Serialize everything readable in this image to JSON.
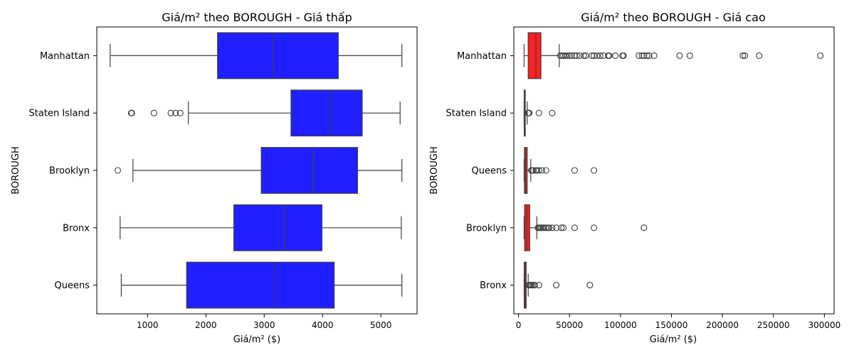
{
  "chart_data": [
    {
      "type": "boxplot",
      "title": "Giá/m² theo BOROUGH - Giá thấp",
      "xlabel": "Giá/m² ($)",
      "ylabel": "BOROUGH",
      "xlim": [
        130,
        5620
      ],
      "xticks": [
        1000,
        2000,
        3000,
        4000,
        5000
      ],
      "xtick_labels": [
        "1000",
        "2000",
        "3000",
        "4000",
        "5000"
      ],
      "box_color": "#0000ff",
      "categories": [
        "Manhattan",
        "Staten Island",
        "Brooklyn",
        "Bronx",
        "Queens"
      ],
      "boxes": [
        {
          "name": "Manhattan",
          "whislo": 360,
          "q1": 2200,
          "med": 3150,
          "q3": 4270,
          "whishi": 5360,
          "fliers": []
        },
        {
          "name": "Staten Island",
          "whislo": 1700,
          "q1": 3460,
          "med": 4140,
          "q3": 4680,
          "whishi": 5330,
          "fliers": [
            720,
            730,
            1110,
            1400,
            1480,
            1560
          ]
        },
        {
          "name": "Brooklyn",
          "whislo": 750,
          "q1": 2950,
          "med": 3840,
          "q3": 4600,
          "whishi": 5360,
          "fliers": [
            490
          ]
        },
        {
          "name": "Bronx",
          "whislo": 530,
          "q1": 2480,
          "med": 3350,
          "q3": 3990,
          "whishi": 5350,
          "fliers": []
        },
        {
          "name": "Queens",
          "whislo": 550,
          "q1": 1670,
          "med": 3180,
          "q3": 4200,
          "whishi": 5360,
          "fliers": []
        }
      ]
    },
    {
      "type": "boxplot",
      "title": "Giá/m² theo BOROUGH - Giá cao",
      "xlabel": "Giá/m² ($)",
      "ylabel": "BOROUGH",
      "xlim": [
        -4600,
        309500
      ],
      "xticks": [
        0,
        50000,
        100000,
        150000,
        200000,
        250000,
        300000
      ],
      "xtick_labels": [
        "0",
        "50000",
        "100000",
        "150000",
        "200000",
        "250000",
        "300000"
      ],
      "box_color": "#ff0000",
      "categories": [
        "Manhattan",
        "Staten Island",
        "Queens",
        "Brooklyn",
        "Bronx"
      ],
      "boxes": [
        {
          "name": "Manhattan",
          "whislo": 5500,
          "q1": 9500,
          "med": 17000,
          "q3": 22000,
          "whishi": 40000,
          "fliers": [
            41000,
            42500,
            44000,
            46000,
            48000,
            50000,
            52000,
            55000,
            57000,
            60000,
            64000,
            66000,
            72000,
            74000,
            77000,
            80000,
            83000,
            88000,
            89000,
            95000,
            102000,
            103000,
            118000,
            121000,
            123000,
            126000,
            128000,
            133000,
            158000,
            168000,
            220000,
            222000,
            236000,
            296000
          ]
        },
        {
          "name": "Staten Island",
          "whislo": 5500,
          "q1": 5600,
          "med": 6000,
          "q3": 6600,
          "whishi": 8500,
          "fliers": [
            9500,
            10000,
            10500,
            20000,
            33000
          ]
        },
        {
          "name": "Queens",
          "whislo": 5500,
          "q1": 5800,
          "med": 7000,
          "q3": 8500,
          "whishi": 12000,
          "fliers": [
            12500,
            13500,
            14500,
            17000,
            18000,
            20000,
            23000,
            27000,
            55000,
            74000
          ]
        },
        {
          "name": "Brooklyn",
          "whislo": 5500,
          "q1": 6000,
          "med": 8000,
          "q3": 11000,
          "whishi": 18000,
          "fliers": [
            19000,
            20000,
            21000,
            22000,
            23500,
            25000,
            27000,
            29000,
            30000,
            33000,
            37000,
            42000,
            44000,
            55000,
            74000,
            123000
          ]
        },
        {
          "name": "Bronx",
          "whislo": 5500,
          "q1": 5600,
          "med": 6500,
          "q3": 7500,
          "whishi": 9500,
          "fliers": [
            10000,
            11000,
            12000,
            13000,
            14500,
            16000,
            20000,
            37000,
            70000
          ]
        }
      ]
    }
  ]
}
